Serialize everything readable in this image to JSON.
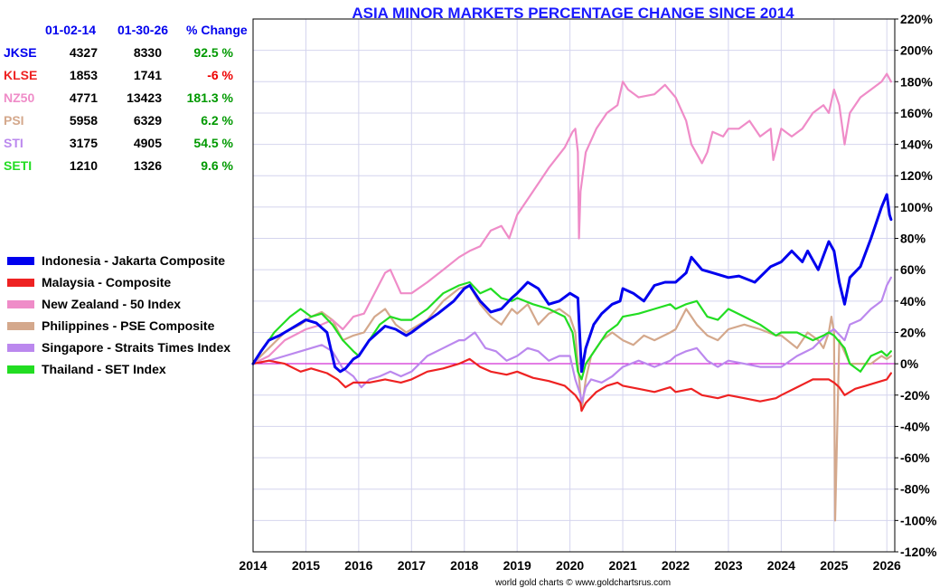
{
  "chart_data": {
    "type": "line",
    "title": "ASIA MINOR MARKETS PERCENTAGE CHANGE SINCE 2014",
    "credit": "world gold charts © www.goldchartsrus.com",
    "xlim": [
      2014,
      2026.15
    ],
    "ylim": [
      -120,
      220
    ],
    "x_ticks": [
      "2014",
      "2015",
      "2016",
      "2017",
      "2018",
      "2019",
      "2020",
      "2021",
      "2022",
      "2023",
      "2024",
      "2025",
      "2026"
    ],
    "y_ticks": [
      "220%",
      "200%",
      "180%",
      "160%",
      "140%",
      "120%",
      "100%",
      "80%",
      "60%",
      "40%",
      "20%",
      "0%",
      "-20%",
      "-40%",
      "-60%",
      "-80%",
      "-100%",
      "-120%"
    ],
    "y_tick_values": [
      220,
      200,
      180,
      160,
      140,
      120,
      100,
      80,
      60,
      40,
      20,
      0,
      -20,
      -40,
      -60,
      -80,
      -100,
      -120
    ],
    "table": {
      "headers": [
        "01-02-14",
        "01-30-26",
        "% Change"
      ],
      "rows": [
        {
          "ticker": "JKSE",
          "start": "4327",
          "end": "8330",
          "change": "92.5 %",
          "color": "#0000ee",
          "change_color": "#009900"
        },
        {
          "ticker": "KLSE",
          "start": "1853",
          "end": "1741",
          "change": "-6 %",
          "color": "#ee2222",
          "change_color": "#ee0000"
        },
        {
          "ticker": "NZ50",
          "start": "4771",
          "end": "13423",
          "change": "181.3 %",
          "color": "#ef8cc8",
          "change_color": "#009900"
        },
        {
          "ticker": "PSI",
          "start": "5958",
          "end": "6329",
          "change": "6.2 %",
          "color": "#d4a88c",
          "change_color": "#009900"
        },
        {
          "ticker": "STI",
          "start": "3175",
          "end": "4905",
          "change": "54.5 %",
          "color": "#bb88ee",
          "change_color": "#009900"
        },
        {
          "ticker": "SETI",
          "start": "1210",
          "end": "1326",
          "change": "9.6 %",
          "color": "#22dd22",
          "change_color": "#009900"
        }
      ]
    },
    "series": [
      {
        "name": "Indonesia - Jakarta Composite",
        "color": "#0000ee",
        "x": [
          2014.0,
          2014.15,
          2014.3,
          2014.5,
          2014.7,
          2015.0,
          2015.2,
          2015.4,
          2015.55,
          2015.65,
          2015.75,
          2015.9,
          2016.0,
          2016.2,
          2016.5,
          2016.7,
          2016.9,
          2017.0,
          2017.2,
          2017.5,
          2017.8,
          2018.0,
          2018.1,
          2018.3,
          2018.5,
          2018.7,
          2018.9,
          2019.0,
          2019.2,
          2019.4,
          2019.6,
          2019.8,
          2020.0,
          2020.15,
          2020.22,
          2020.3,
          2020.45,
          2020.6,
          2020.8,
          2020.95,
          2021.0,
          2021.2,
          2021.4,
          2021.6,
          2021.8,
          2022.0,
          2022.2,
          2022.3,
          2022.5,
          2022.7,
          2022.9,
          2023.0,
          2023.2,
          2023.5,
          2023.8,
          2024.0,
          2024.2,
          2024.4,
          2024.5,
          2024.7,
          2024.9,
          2025.0,
          2025.1,
          2025.2,
          2025.3,
          2025.5,
          2025.7,
          2025.9,
          2026.0,
          2026.05,
          2026.08
        ],
        "values": [
          0,
          8,
          15,
          18,
          22,
          28,
          26,
          20,
          -2,
          -5,
          -3,
          3,
          5,
          15,
          24,
          22,
          18,
          20,
          25,
          32,
          40,
          48,
          50,
          40,
          33,
          35,
          42,
          45,
          52,
          48,
          38,
          40,
          45,
          42,
          -5,
          10,
          25,
          32,
          38,
          40,
          48,
          45,
          40,
          50,
          52,
          52,
          58,
          68,
          60,
          58,
          56,
          55,
          56,
          52,
          62,
          65,
          72,
          65,
          72,
          60,
          78,
          72,
          52,
          38,
          55,
          62,
          80,
          100,
          108,
          95,
          92
        ]
      },
      {
        "name": "Malaysia - Composite",
        "color": "#ee2222",
        "x": [
          2014.0,
          2014.3,
          2014.6,
          2014.9,
          2015.1,
          2015.4,
          2015.6,
          2015.75,
          2015.9,
          2016.2,
          2016.5,
          2016.8,
          2017.0,
          2017.3,
          2017.6,
          2017.9,
          2018.1,
          2018.3,
          2018.5,
          2018.8,
          2019.0,
          2019.3,
          2019.6,
          2019.9,
          2020.1,
          2020.2,
          2020.22,
          2020.3,
          2020.5,
          2020.7,
          2020.9,
          2021.0,
          2021.3,
          2021.6,
          2021.9,
          2022.0,
          2022.3,
          2022.5,
          2022.8,
          2023.0,
          2023.3,
          2023.6,
          2023.9,
          2024.0,
          2024.3,
          2024.6,
          2024.9,
          2025.0,
          2025.1,
          2025.2,
          2025.4,
          2025.6,
          2025.8,
          2026.0,
          2026.08
        ],
        "values": [
          0,
          2,
          0,
          -5,
          -3,
          -6,
          -10,
          -15,
          -12,
          -12,
          -10,
          -12,
          -10,
          -5,
          -3,
          0,
          3,
          -2,
          -5,
          -7,
          -5,
          -9,
          -11,
          -14,
          -20,
          -25,
          -30,
          -25,
          -18,
          -14,
          -12,
          -14,
          -16,
          -18,
          -15,
          -18,
          -16,
          -20,
          -22,
          -20,
          -22,
          -24,
          -22,
          -20,
          -15,
          -10,
          -10,
          -12,
          -15,
          -20,
          -16,
          -14,
          -12,
          -10,
          -6
        ]
      },
      {
        "name": "New Zealand - 50 Index",
        "color": "#ef8cc8",
        "x": [
          2014.0,
          2014.3,
          2014.6,
          2015.0,
          2015.3,
          2015.5,
          2015.7,
          2015.9,
          2016.1,
          2016.3,
          2016.5,
          2016.6,
          2016.8,
          2017.0,
          2017.3,
          2017.6,
          2017.9,
          2018.1,
          2018.3,
          2018.5,
          2018.7,
          2018.85,
          2019.0,
          2019.3,
          2019.6,
          2019.9,
          2020.05,
          2020.1,
          2020.15,
          2020.17,
          2020.2,
          2020.3,
          2020.5,
          2020.7,
          2020.9,
          2021.0,
          2021.1,
          2021.3,
          2021.6,
          2021.8,
          2021.9,
          2022.0,
          2022.2,
          2022.3,
          2022.5,
          2022.6,
          2022.7,
          2022.9,
          2023.0,
          2023.2,
          2023.4,
          2023.6,
          2023.8,
          2023.85,
          2024.0,
          2024.2,
          2024.4,
          2024.6,
          2024.8,
          2024.9,
          2025.0,
          2025.1,
          2025.2,
          2025.3,
          2025.5,
          2025.7,
          2025.9,
          2026.0,
          2026.08
        ],
        "values": [
          0,
          5,
          15,
          22,
          25,
          28,
          22,
          30,
          32,
          45,
          58,
          60,
          45,
          45,
          52,
          60,
          68,
          72,
          75,
          85,
          88,
          80,
          95,
          110,
          125,
          138,
          148,
          150,
          135,
          80,
          110,
          135,
          150,
          160,
          165,
          180,
          175,
          170,
          172,
          178,
          174,
          170,
          155,
          140,
          128,
          135,
          148,
          145,
          150,
          150,
          155,
          145,
          150,
          130,
          150,
          145,
          150,
          160,
          165,
          160,
          175,
          165,
          140,
          160,
          170,
          175,
          180,
          185,
          180
        ]
      },
      {
        "name": "Philippines - PSE Composite",
        "color": "#d4a88c",
        "x": [
          2014.0,
          2014.3,
          2014.6,
          2014.9,
          2015.1,
          2015.3,
          2015.5,
          2015.7,
          2015.9,
          2016.1,
          2016.3,
          2016.5,
          2016.7,
          2016.9,
          2017.0,
          2017.3,
          2017.6,
          2017.9,
          2018.1,
          2018.3,
          2018.5,
          2018.7,
          2018.9,
          2019.0,
          2019.2,
          2019.4,
          2019.6,
          2019.8,
          2020.0,
          2020.1,
          2020.15,
          2020.2,
          2020.22,
          2020.3,
          2020.4,
          2020.6,
          2020.8,
          2021.0,
          2021.2,
          2021.4,
          2021.6,
          2021.9,
          2022.0,
          2022.2,
          2022.4,
          2022.6,
          2022.8,
          2023.0,
          2023.3,
          2023.6,
          2023.9,
          2024.0,
          2024.3,
          2024.5,
          2024.7,
          2024.8,
          2024.9,
          2024.95,
          2025.0,
          2025.02,
          2025.1,
          2025.3,
          2025.5,
          2025.7,
          2025.9,
          2026.0,
          2026.08
        ],
        "values": [
          0,
          10,
          20,
          25,
          30,
          33,
          28,
          15,
          18,
          20,
          30,
          35,
          25,
          20,
          22,
          28,
          40,
          48,
          50,
          38,
          30,
          25,
          35,
          32,
          38,
          25,
          32,
          35,
          30,
          20,
          0,
          -20,
          -30,
          -10,
          5,
          15,
          20,
          15,
          12,
          18,
          15,
          20,
          22,
          35,
          25,
          18,
          15,
          22,
          25,
          22,
          18,
          18,
          10,
          20,
          15,
          10,
          20,
          30,
          20,
          -100,
          15,
          0,
          0,
          0,
          5,
          3,
          5
        ]
      },
      {
        "name": "Singapore - Straits Times Index",
        "color": "#bb88ee",
        "x": [
          2014.0,
          2014.3,
          2014.6,
          2014.9,
          2015.1,
          2015.3,
          2015.5,
          2015.7,
          2015.9,
          2016.05,
          2016.2,
          2016.4,
          2016.6,
          2016.8,
          2017.0,
          2017.3,
          2017.6,
          2017.9,
          2018.0,
          2018.2,
          2018.4,
          2018.6,
          2018.8,
          2019.0,
          2019.2,
          2019.4,
          2019.6,
          2019.8,
          2020.0,
          2020.1,
          2020.2,
          2020.22,
          2020.3,
          2020.4,
          2020.6,
          2020.8,
          2021.0,
          2021.3,
          2021.6,
          2021.9,
          2022.0,
          2022.2,
          2022.4,
          2022.6,
          2022.8,
          2023.0,
          2023.3,
          2023.6,
          2023.9,
          2024.0,
          2024.3,
          2024.6,
          2024.9,
          2025.0,
          2025.2,
          2025.3,
          2025.5,
          2025.7,
          2025.9,
          2026.0,
          2026.08
        ],
        "values": [
          0,
          2,
          5,
          8,
          10,
          12,
          8,
          -3,
          -8,
          -15,
          -10,
          -8,
          -5,
          -8,
          -5,
          5,
          10,
          15,
          15,
          20,
          10,
          8,
          2,
          5,
          10,
          8,
          2,
          5,
          5,
          -10,
          -20,
          -25,
          -15,
          -10,
          -12,
          -8,
          -2,
          2,
          -2,
          2,
          5,
          8,
          10,
          2,
          -2,
          2,
          0,
          -2,
          -2,
          -2,
          5,
          10,
          20,
          22,
          15,
          25,
          28,
          35,
          40,
          50,
          55
        ]
      },
      {
        "name": "Thailand - SET Index",
        "color": "#22dd22",
        "x": [
          2014.0,
          2014.2,
          2014.4,
          2014.7,
          2014.9,
          2015.1,
          2015.3,
          2015.5,
          2015.7,
          2015.9,
          2016.0,
          2016.2,
          2016.4,
          2016.6,
          2016.8,
          2017.0,
          2017.3,
          2017.6,
          2017.9,
          2018.1,
          2018.3,
          2018.5,
          2018.7,
          2018.9,
          2019.0,
          2019.3,
          2019.6,
          2019.9,
          2020.05,
          2020.15,
          2020.22,
          2020.3,
          2020.5,
          2020.7,
          2020.9,
          2021.0,
          2021.3,
          2021.6,
          2021.9,
          2022.0,
          2022.2,
          2022.4,
          2022.6,
          2022.8,
          2023.0,
          2023.3,
          2023.6,
          2023.9,
          2024.0,
          2024.3,
          2024.6,
          2024.8,
          2024.9,
          2025.0,
          2025.2,
          2025.3,
          2025.5,
          2025.7,
          2025.9,
          2026.0,
          2026.08
        ],
        "values": [
          0,
          10,
          20,
          30,
          35,
          30,
          32,
          25,
          15,
          8,
          5,
          15,
          25,
          30,
          28,
          28,
          35,
          45,
          50,
          52,
          45,
          48,
          42,
          40,
          42,
          38,
          35,
          30,
          20,
          -5,
          -10,
          0,
          10,
          20,
          25,
          30,
          32,
          35,
          38,
          35,
          38,
          40,
          30,
          28,
          35,
          30,
          25,
          18,
          20,
          20,
          15,
          18,
          20,
          18,
          10,
          0,
          -5,
          5,
          8,
          5,
          8
        ]
      }
    ]
  }
}
